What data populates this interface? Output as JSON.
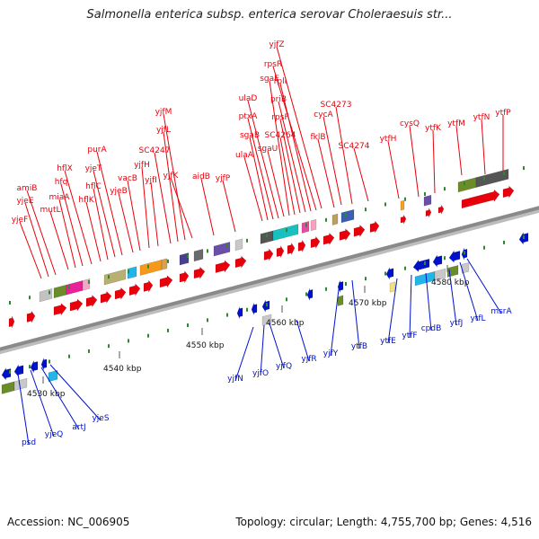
{
  "title": "Salmonella enterica subsp. enterica serovar Choleraesuis str...",
  "footer": {
    "accession": "Accession: NC_006905",
    "summary": "Topology: circular; Length: 4,755,700 bp; Genes: 4,516"
  },
  "colors": {
    "forward_strand": "#e8000b",
    "reverse_strand": "#0011cc",
    "axis": "#888888"
  },
  "ticks": [
    "4530 kbp",
    "4540 kbp",
    "4550 kbp",
    "4560 kbp",
    "4570 kbp",
    "4580 kbp"
  ],
  "forward_labels": [
    "yjeF",
    "yjeE",
    "amiB",
    "mutL",
    "miaA",
    "hfq",
    "hflX",
    "hflK",
    "hflC",
    "yjeT",
    "purA",
    "yjeB",
    "vacB",
    "yjfH",
    "yjfI",
    "SC4247",
    "yjfL",
    "yjfM",
    "yjfK",
    "aidB",
    "yjfP",
    "ulaA",
    "sgaB",
    "ptxA",
    "ulaD",
    "sgaU",
    "sgaE",
    "SC4264",
    "rpsF",
    "priB",
    "rplI",
    "rpsR",
    "yjfZ",
    "fklB",
    "cycA",
    "SC4273",
    "SC4274",
    "ytfH",
    "cysQ",
    "ytfK",
    "ytfM",
    "ytfN",
    "ytfP"
  ],
  "reverse_labels": [
    "psd",
    "yjeQ",
    "artJ",
    "yjeS",
    "yjfN",
    "yjfO",
    "yjfQ",
    "yjfR",
    "yjfY",
    "ytfB",
    "ytfE",
    "ytfF",
    "cpdB",
    "ytfJ",
    "ytfL",
    "msrA"
  ]
}
